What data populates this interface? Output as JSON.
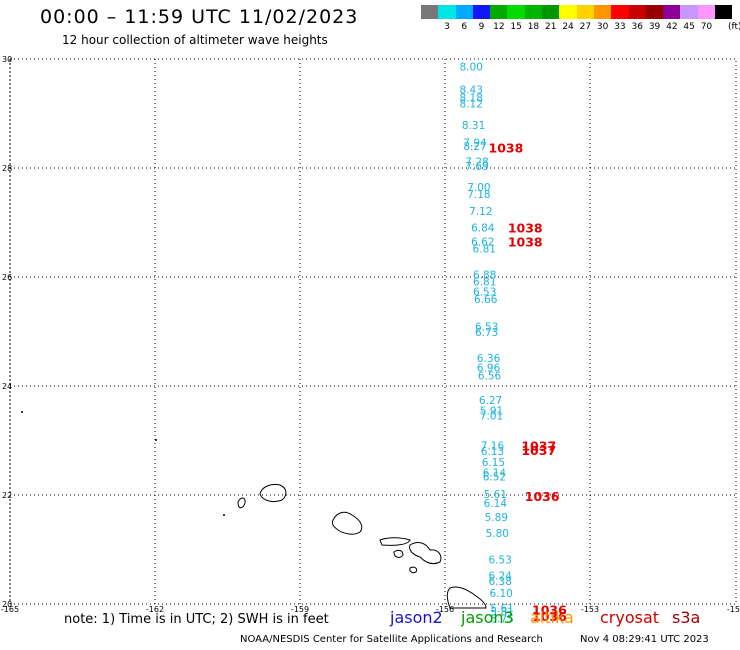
{
  "header": {
    "title": "00:00 – 11:59 UTC 11/02/2023",
    "subtitle": "12 hour collection of altimeter wave heights"
  },
  "color_scale": {
    "unit_label": "(ft)",
    "bins": [
      {
        "label": "",
        "color": "#787878"
      },
      {
        "label": "3",
        "color": "#00e6e6"
      },
      {
        "label": "6",
        "color": "#00aaff"
      },
      {
        "label": "9",
        "color": "#1414ff"
      },
      {
        "label": "12",
        "color": "#00aa00"
      },
      {
        "label": "15",
        "color": "#00dc00"
      },
      {
        "label": "18",
        "color": "#00b400"
      },
      {
        "label": "21",
        "color": "#009600"
      },
      {
        "label": "24",
        "color": "#ffff00"
      },
      {
        "label": "27",
        "color": "#ffd200"
      },
      {
        "label": "30",
        "color": "#ff9600"
      },
      {
        "label": "33",
        "color": "#ff0000"
      },
      {
        "label": "36",
        "color": "#c80000"
      },
      {
        "label": "39",
        "color": "#960000"
      },
      {
        "label": "42",
        "color": "#8c0096"
      },
      {
        "label": "45",
        "color": "#c896ff"
      },
      {
        "label": "70",
        "color": "#ff96ff"
      },
      {
        "label": "",
        "color": "#000000"
      }
    ]
  },
  "map": {
    "lat_range": [
      20,
      30
    ],
    "lon_range": [
      -165,
      -154
    ],
    "lat_ticks": [
      "20",
      "22",
      "24",
      "26",
      "28",
      "30"
    ],
    "lon_ticks": [
      "-165",
      "-162",
      "-159",
      "-156",
      "-153",
      "-154"
    ],
    "wave_color": "#1eb4dc",
    "pressure_color": "#e60000",
    "wave_heights": [
      {
        "lat": 29.86,
        "lon": -155.7,
        "v": "8.00"
      },
      {
        "lat": 29.44,
        "lon": -155.7,
        "v": "8.43"
      },
      {
        "lat": 29.29,
        "lon": -155.7,
        "v": "8.18"
      },
      {
        "lat": 29.18,
        "lon": -155.7,
        "v": "8.12"
      },
      {
        "lat": 28.79,
        "lon": -155.65,
        "v": "8.31"
      },
      {
        "lat": 28.47,
        "lon": -155.62,
        "v": "7.94"
      },
      {
        "lat": 28.4,
        "lon": -155.62,
        "v": "8.27"
      },
      {
        "lat": 28.12,
        "lon": -155.58,
        "v": "7.28"
      },
      {
        "lat": 28.04,
        "lon": -155.58,
        "v": "7.69"
      },
      {
        "lat": 27.65,
        "lon": -155.54,
        "v": "7.00"
      },
      {
        "lat": 27.52,
        "lon": -155.54,
        "v": "7.18"
      },
      {
        "lat": 27.21,
        "lon": -155.5,
        "v": "7.12"
      },
      {
        "lat": 26.91,
        "lon": -155.46,
        "v": "6.84"
      },
      {
        "lat": 26.65,
        "lon": -155.46,
        "v": "6.62"
      },
      {
        "lat": 26.52,
        "lon": -155.43,
        "v": "6.81"
      },
      {
        "lat": 26.05,
        "lon": -155.42,
        "v": "6.88"
      },
      {
        "lat": 25.92,
        "lon": -155.42,
        "v": "6.81"
      },
      {
        "lat": 25.73,
        "lon": -155.42,
        "v": "6.53"
      },
      {
        "lat": 25.6,
        "lon": -155.4,
        "v": "6.66"
      },
      {
        "lat": 25.09,
        "lon": -155.38,
        "v": "6.53"
      },
      {
        "lat": 24.99,
        "lon": -155.38,
        "v": "6.73"
      },
      {
        "lat": 24.51,
        "lon": -155.34,
        "v": "6.36"
      },
      {
        "lat": 24.34,
        "lon": -155.34,
        "v": "6.96"
      },
      {
        "lat": 24.19,
        "lon": -155.32,
        "v": "6.56"
      },
      {
        "lat": 23.74,
        "lon": -155.3,
        "v": "6.27"
      },
      {
        "lat": 23.55,
        "lon": -155.28,
        "v": "5.91"
      },
      {
        "lat": 23.46,
        "lon": -155.28,
        "v": "7.01"
      },
      {
        "lat": 22.91,
        "lon": -155.26,
        "v": "7.16"
      },
      {
        "lat": 22.81,
        "lon": -155.26,
        "v": "6.13"
      },
      {
        "lat": 22.61,
        "lon": -155.24,
        "v": "6.15"
      },
      {
        "lat": 22.41,
        "lon": -155.22,
        "v": "6.14"
      },
      {
        "lat": 22.34,
        "lon": -155.22,
        "v": "6.52"
      },
      {
        "lat": 22.02,
        "lon": -155.2,
        "v": "5.61"
      },
      {
        "lat": 21.85,
        "lon": -155.2,
        "v": "6.14"
      },
      {
        "lat": 21.6,
        "lon": -155.18,
        "v": "5.89"
      },
      {
        "lat": 21.3,
        "lon": -155.16,
        "v": "5.80"
      },
      {
        "lat": 20.82,
        "lon": -155.1,
        "v": "6.53"
      },
      {
        "lat": 20.52,
        "lon": -155.1,
        "v": "6.24"
      },
      {
        "lat": 20.42,
        "lon": -155.1,
        "v": "6.38"
      },
      {
        "lat": 20.2,
        "lon": -155.08,
        "v": "6.10"
      },
      {
        "lat": 19.93,
        "lon": -155.06,
        "v": "5.61"
      },
      {
        "lat": 19.86,
        "lon": -155.06,
        "v": "5.81"
      },
      {
        "lat": 19.73,
        "lon": -155.06,
        "v": "5.75"
      }
    ],
    "pressure_labels": [
      {
        "lat": 28.38,
        "lon": -155.1,
        "v": "1038"
      },
      {
        "lat": 26.91,
        "lon": -154.7,
        "v": "1038"
      },
      {
        "lat": 26.65,
        "lon": -154.7,
        "v": "1038"
      },
      {
        "lat": 22.91,
        "lon": -154.42,
        "v": "1037"
      },
      {
        "lat": 22.83,
        "lon": -154.42,
        "v": "1037"
      },
      {
        "lat": 21.98,
        "lon": -154.35,
        "v": "1036"
      },
      {
        "lat": 19.9,
        "lon": -154.2,
        "v": "1036"
      },
      {
        "lat": 19.78,
        "lon": -154.2,
        "v": "1036"
      }
    ]
  },
  "footer": {
    "note": "note: 1) Time is in UTC; 2) SWH is in feet",
    "satellites": [
      {
        "name": "jason2",
        "color": "#1414d2"
      },
      {
        "name": "jason3",
        "color": "#00a000"
      },
      {
        "name": "altika",
        "color": "#ff9600"
      },
      {
        "name": "cryosat",
        "color": "#d20000"
      },
      {
        "name": "s3a",
        "color": "#a00000"
      }
    ],
    "credit": "NOAA/NESDIS Center for Satellite Applications and Research",
    "timestamp": "Nov  4 08:29:41 UTC 2023"
  }
}
